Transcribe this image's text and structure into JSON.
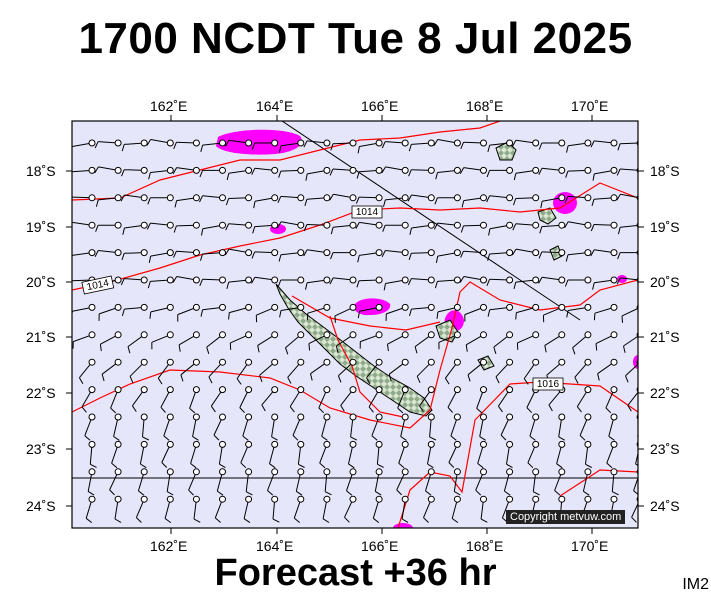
{
  "header": {
    "title": "1700 NCDT Tue 8 Jul 2025"
  },
  "footer": {
    "caption": "Forecast +36 hr",
    "image_id": "IM2"
  },
  "map": {
    "lon_labels": [
      "162˚E",
      "164˚E",
      "166˚E",
      "168˚E",
      "170˚E"
    ],
    "lat_labels": [
      "18˚S",
      "19˚S",
      "20˚S",
      "21˚S",
      "22˚S",
      "23˚S",
      "24˚S"
    ],
    "isobar_labels": [
      "1014",
      "1014",
      "1016"
    ],
    "copyright": "Copyright metvuw.com",
    "colors": {
      "background": "#e6e6fa",
      "isobar": "#ff0000",
      "rain": "#ff00ff",
      "land": "#9fb79f"
    }
  }
}
